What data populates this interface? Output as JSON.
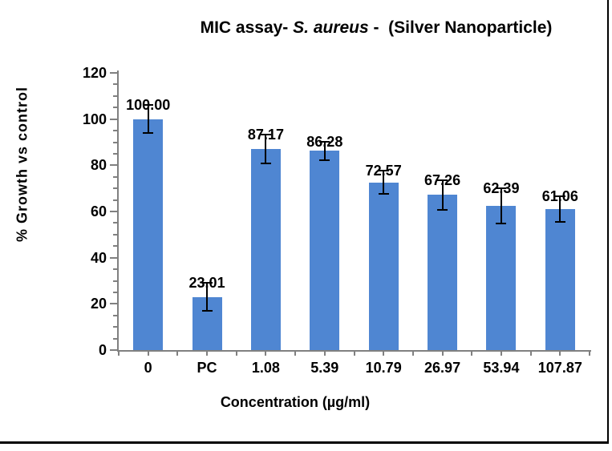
{
  "title": {
    "prefix": "MIC assay- ",
    "italic": "S. aureus",
    "suffix": " -  (Silver Nanoparticle)"
  },
  "chart_data": {
    "type": "bar",
    "title": "MIC assay- S. aureus - (Silver Nanoparticle)",
    "categories": [
      "0",
      "PC",
      "1.08",
      "5.39",
      "10.79",
      "26.97",
      "53.94",
      "107.87"
    ],
    "values": [
      100.0,
      23.01,
      87.17,
      86.28,
      72.57,
      67.26,
      62.39,
      61.06
    ],
    "value_labels": [
      "100.00",
      "23.01",
      "87.17",
      "86.28",
      "72.57",
      "67.26",
      "62.39",
      "61.06"
    ],
    "errors": [
      6.0,
      6.0,
      6.2,
      4.0,
      5.0,
      6.4,
      7.5,
      5.5
    ],
    "xlabel": "Concentration (µg/ml)",
    "ylabel": "% Growth vs control",
    "ylim": [
      0,
      120
    ],
    "yticks": [
      0,
      20,
      40,
      60,
      80,
      100,
      120
    ],
    "ytick_minor_step": 5,
    "grid": false,
    "legend": null,
    "colors": {
      "bar": "#4F86D2",
      "axis": "#808080",
      "error_bar": "#000000",
      "text": "#000000",
      "frame": "#000000"
    }
  }
}
